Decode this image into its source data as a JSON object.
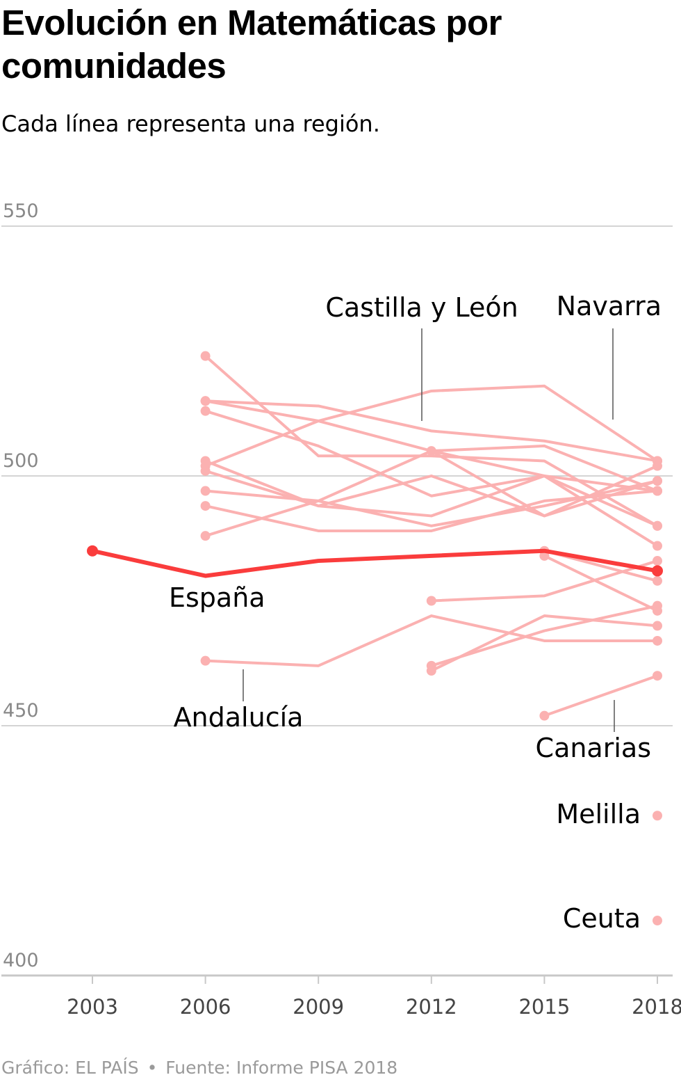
{
  "title": "Evolución en Matemáticas por comunidades",
  "subtitle": "Cada línea representa una región.",
  "footer": {
    "credit": "Gráfico: EL PAÍS",
    "separator": "•",
    "source": "Fuente: Informe PISA 2018"
  },
  "colors": {
    "highlight": "#fa3c3c",
    "regions": "#fbb1b1",
    "grid": "#d4d4d4",
    "tick_text": "#888888",
    "annotation_text": "#000000"
  },
  "chart_data": {
    "type": "line",
    "title": "Evolución en Matemáticas por comunidades",
    "xlabel": "",
    "ylabel": "",
    "x": [
      2003,
      2006,
      2009,
      2012,
      2015,
      2018
    ],
    "x_ticks": [
      "2003",
      "2006",
      "2009",
      "2012",
      "2015",
      "2018"
    ],
    "y_ticks": [
      400,
      450,
      500,
      550
    ],
    "ylim": [
      400,
      550
    ],
    "grid": true,
    "legend": "none",
    "highlight": {
      "name": "España",
      "values": [
        485,
        480,
        483,
        484,
        485,
        481
      ]
    },
    "series": [
      {
        "name": "Castilla y León",
        "values": [
          null,
          515,
          514,
          509,
          507,
          503
        ]
      },
      {
        "name": "Navarra",
        "values": [
          null,
          502,
          511,
          517,
          518,
          503
        ]
      },
      {
        "name": "",
        "values": [
          null,
          524,
          504,
          504,
          503,
          490
        ]
      },
      {
        "name": "",
        "values": [
          null,
          515,
          511,
          505,
          500,
          490
        ]
      },
      {
        "name": "",
        "values": [
          null,
          513,
          506,
          496,
          500,
          486
        ]
      },
      {
        "name": "",
        "values": [
          null,
          503,
          494,
          500,
          492,
          499
        ]
      },
      {
        "name": "",
        "values": [
          null,
          501,
          494,
          492,
          500,
          497
        ]
      },
      {
        "name": "",
        "values": [
          null,
          497,
          495,
          490,
          494,
          499
        ]
      },
      {
        "name": "",
        "values": [
          null,
          494,
          489,
          489,
          495,
          497
        ]
      },
      {
        "name": "",
        "values": [
          null,
          488,
          495,
          505,
          506,
          497
        ]
      },
      {
        "name": "",
        "values": [
          null,
          null,
          null,
          505,
          492,
          502
        ]
      },
      {
        "name": "Andalucía",
        "values": [
          null,
          463,
          462,
          472,
          467,
          467
        ]
      },
      {
        "name": "",
        "values": [
          null,
          null,
          null,
          475,
          476,
          483
        ]
      },
      {
        "name": "",
        "values": [
          null,
          null,
          null,
          461,
          472,
          470
        ]
      },
      {
        "name": "",
        "values": [
          null,
          null,
          null,
          462,
          469,
          474
        ]
      },
      {
        "name": "",
        "values": [
          null,
          null,
          null,
          null,
          484,
          473
        ]
      },
      {
        "name": "",
        "values": [
          null,
          null,
          null,
          null,
          485,
          479
        ]
      },
      {
        "name": "Canarias",
        "values": [
          null,
          null,
          null,
          null,
          452,
          460
        ]
      },
      {
        "name": "Melilla",
        "values": [
          null,
          null,
          null,
          null,
          null,
          432
        ]
      },
      {
        "name": "Ceuta",
        "values": [
          null,
          null,
          null,
          null,
          null,
          411
        ]
      }
    ],
    "annotations": [
      {
        "label": "Castilla y León"
      },
      {
        "label": "Navarra"
      },
      {
        "label": "España"
      },
      {
        "label": "Andalucía"
      },
      {
        "label": "Canarias"
      },
      {
        "label": "Melilla"
      },
      {
        "label": "Ceuta"
      }
    ]
  }
}
